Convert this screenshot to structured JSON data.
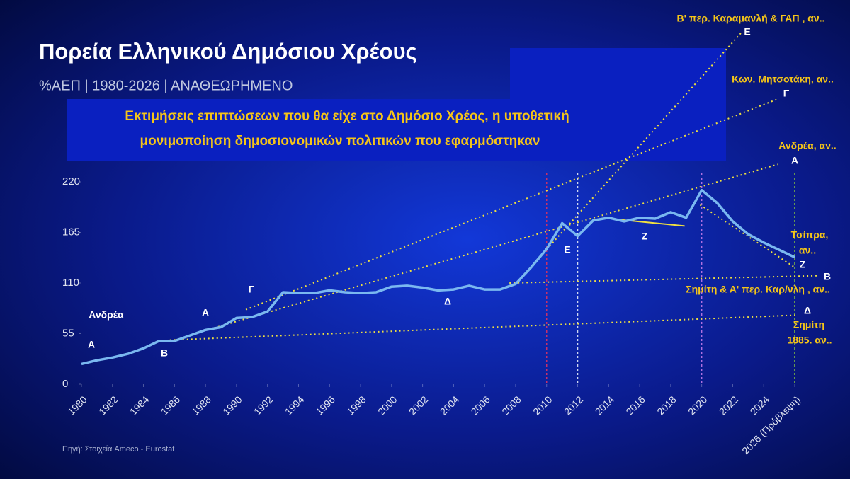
{
  "chart_data": {
    "type": "line",
    "title": "Πορεία Ελληνικού Δημόσιου Χρέους",
    "subtitle": "%ΑΕΠ | 1980-2026 | ΑΝΑΘΕΩΡΗΜΕΝΟ",
    "note": [
      "Εκτιμήσεις επιπτώσεων που θα είχε στο Δημόσιο Χρέος, η υποθετική",
      "μονιμοποίηση δημοσιονομικών πολιτικών που εφαρμόστηκαν"
    ],
    "source": "Πηγή: Στοιχεία Ameco - Eurostat",
    "x": [
      1980,
      1981,
      1982,
      1983,
      1984,
      1985,
      1986,
      1987,
      1988,
      1989,
      1990,
      1991,
      1992,
      1993,
      1994,
      1995,
      1996,
      1997,
      1998,
      1999,
      2000,
      2001,
      2002,
      2003,
      2004,
      2005,
      2006,
      2007,
      2008,
      2009,
      2010,
      2011,
      2012,
      2013,
      2014,
      2015,
      2016,
      2017,
      2018,
      2019,
      2020,
      2021,
      2022,
      2023,
      2024,
      2025,
      2026
    ],
    "series": [
      {
        "color": "#7ab8f0",
        "values": [
          22,
          26,
          29,
          33,
          39,
          47,
          47,
          53,
          59,
          62,
          72,
          73,
          79,
          100,
          99,
          99,
          102,
          100,
          99,
          100,
          106,
          107,
          105,
          102,
          103,
          107,
          103,
          103,
          109,
          127,
          147,
          175,
          161,
          178,
          181,
          177,
          181,
          180,
          187,
          181,
          211,
          197,
          177,
          163,
          154,
          146,
          138
        ]
      }
    ],
    "xlim": [
      1980,
      2026
    ],
    "xticks": [
      1980,
      1982,
      1984,
      1986,
      1988,
      1990,
      1992,
      1994,
      1996,
      1998,
      2000,
      2002,
      2004,
      2006,
      2008,
      2010,
      2012,
      2014,
      2016,
      2018,
      2020,
      2022,
      2024,
      {
        "value": 2026,
        "label": "2026 (Πρόβλεψη)"
      }
    ],
    "ylim": [
      0,
      220
    ],
    "yticks": [
      0,
      55,
      110,
      165,
      220
    ],
    "grid": false,
    "vlines": [
      {
        "x": 2010,
        "color": "#c8306a"
      },
      {
        "x": 2012,
        "color": "#d0d8f0"
      },
      {
        "x": 2020,
        "color": "#b070e0"
      },
      {
        "x": 2026,
        "color": "#80c040"
      }
    ],
    "projections": [
      {
        "x": [
          2008,
          2022.6
        ],
        "y": [
          109,
          383
        ],
        "color": "#f0e040",
        "dash": true
      },
      {
        "x": [
          1990.6,
          2024.9
        ],
        "y": [
          81,
          310
        ],
        "color": "#f0e040",
        "dash": true
      },
      {
        "x": [
          1987.5,
          2024.9
        ],
        "y": [
          56,
          239
        ],
        "color": "#f0e040",
        "dash": true
      },
      {
        "x": [
          2007.6,
          2027.6
        ],
        "y": [
          110,
          118
        ],
        "color": "#f0e040",
        "dash": true
      },
      {
        "x": [
          1985.7,
          2026
        ],
        "y": [
          48,
          75
        ],
        "color": "#f0e040",
        "dash": true
      },
      {
        "x": [
          2014.6,
          2018.9
        ],
        "y": [
          179,
          172
        ],
        "color": "#f0e040",
        "dash": false
      },
      {
        "x": [
          2019.9,
          2026
        ],
        "y": [
          195,
          127
        ],
        "color": "#f0e040",
        "dash": true
      }
    ],
    "annotations": [
      {
        "text": "Ανδρέα",
        "color": "#ffffff"
      },
      {
        "text": "Α",
        "color": "#ffffff"
      },
      {
        "text": "Β",
        "color": "#ffffff"
      },
      {
        "text": "Α",
        "color": "#ffffff"
      },
      {
        "text": "Γ",
        "color": "#ffffff"
      },
      {
        "text": "Δ",
        "color": "#ffffff"
      },
      {
        "text": "Ε",
        "color": "#ffffff"
      },
      {
        "text": "Ζ",
        "color": "#ffffff"
      },
      {
        "text": "Β' περ. Καραμανλή & ΓΑΠ , αν..",
        "color": "#f5c518"
      },
      {
        "text": "Ε",
        "color": "#ffffff"
      },
      {
        "text": "Κων. Μητσοτάκη, αν..",
        "color": "#f5c518"
      },
      {
        "text": "Γ",
        "color": "#ffffff"
      },
      {
        "text": "Ανδρέα, αν..",
        "color": "#f5c518"
      },
      {
        "text": "Α",
        "color": "#ffffff"
      },
      {
        "text": "Τσίπρα,",
        "color": "#f5c518"
      },
      {
        "text": "αν..",
        "color": "#f5c518"
      },
      {
        "text": "Ζ",
        "color": "#ffffff"
      },
      {
        "text": "Β",
        "color": "#ffffff"
      },
      {
        "text": "Σημίτη & Α'  περ. Καρ/νλη , αν..",
        "color": "#f5c518"
      },
      {
        "text": "Δ",
        "color": "#ffffff"
      },
      {
        "text": "Σημίτη",
        "color": "#f5c518"
      },
      {
        "text": "1885. αν..",
        "color": "#f5c518"
      }
    ]
  }
}
